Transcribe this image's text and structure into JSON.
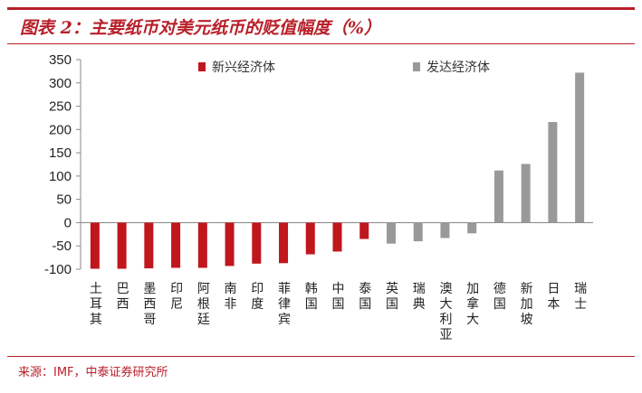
{
  "header": {
    "title": "图表 2：主要纸币对美元纸币的贬值幅度（%）"
  },
  "footer": {
    "source": "来源：IMF，中泰证券研究所"
  },
  "colors": {
    "emerging": "#c0161d",
    "developed": "#999999",
    "accent": "#b8202a"
  },
  "chart_data": {
    "type": "bar",
    "title": "主要纸币对美元纸币的贬值幅度（%）",
    "xlabel": "",
    "ylabel": "",
    "ylim": [
      -100,
      350
    ],
    "yticks": [
      350,
      300,
      250,
      200,
      150,
      100,
      50,
      0,
      -50,
      -100
    ],
    "grid": false,
    "legend_position": "top",
    "categories": [
      "土耳其",
      "巴西",
      "墨西哥",
      "印尼",
      "阿根廷",
      "南非",
      "印度",
      "菲律宾",
      "韩国",
      "中国",
      "泰国",
      "英国",
      "瑞典",
      "澳大利亚",
      "加拿大",
      "德国",
      "新加坡",
      "日本",
      "瑞士"
    ],
    "series": [
      {
        "name": "新兴经济体",
        "color": "#c0161d",
        "values": [
          -99,
          -99,
          -98,
          -97,
          -97,
          -93,
          -88,
          -87,
          -68,
          -62,
          -35,
          null,
          null,
          null,
          null,
          null,
          null,
          null,
          null
        ]
      },
      {
        "name": "发达经济体",
        "color": "#999999",
        "values": [
          null,
          null,
          null,
          null,
          null,
          null,
          null,
          null,
          null,
          null,
          null,
          -45,
          -40,
          -33,
          -23,
          112,
          126,
          216,
          322
        ]
      }
    ]
  }
}
